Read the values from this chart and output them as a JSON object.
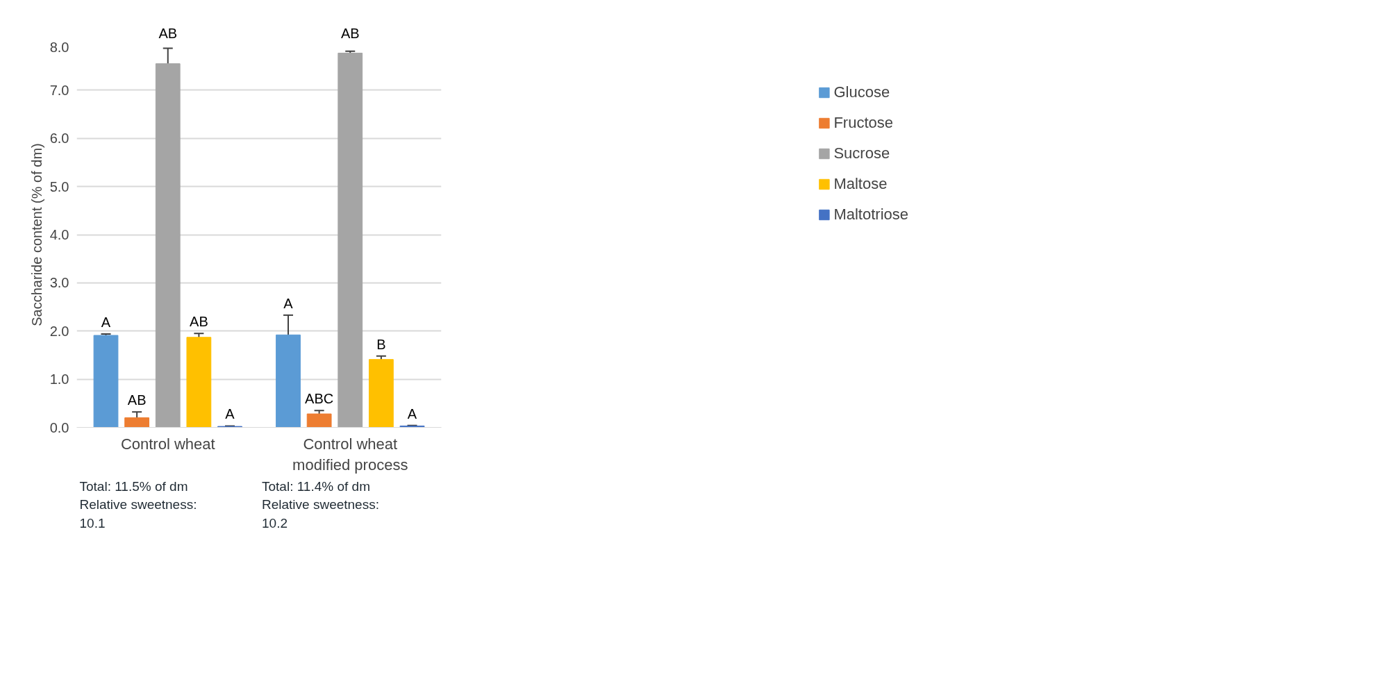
{
  "chart_data": {
    "type": "bar",
    "ylabel": "Saccharide content (% of dm)",
    "categories": [
      "Control wheat",
      "Control wheat modified process"
    ],
    "series": [
      {
        "name": "Glucose",
        "color": "#5b9bd5",
        "values": [
          1.91,
          1.92
        ],
        "errors": [
          0.03,
          0.41
        ],
        "value_labels": [
          "A",
          "A"
        ]
      },
      {
        "name": "Fructose",
        "color": "#ed7d31",
        "values": [
          0.2,
          0.28
        ],
        "errors": [
          0.12,
          0.07
        ],
        "value_labels": [
          "AB",
          "ABC"
        ]
      },
      {
        "name": "Sucrose",
        "color": "#a5a5a5",
        "values": [
          7.55,
          7.77
        ],
        "errors": [
          0.32,
          0.04
        ],
        "value_labels": [
          "AB",
          "AB"
        ]
      },
      {
        "name": "Maltose",
        "color": "#ffc000",
        "values": [
          1.87,
          1.41
        ],
        "errors": [
          0.08,
          0.07
        ],
        "value_labels": [
          "AB",
          "B"
        ]
      },
      {
        "name": "Maltotriose",
        "color": "#4472c4",
        "values": [
          0.02,
          0.03
        ],
        "errors": [
          0.01,
          0.01
        ],
        "value_labels": [
          "A",
          "A"
        ]
      }
    ],
    "ylim": [
      0,
      8
    ],
    "yticks": [
      {
        "value": 0,
        "label": "0.0"
      },
      {
        "value": 1,
        "label": "1.0"
      },
      {
        "value": 2,
        "label": "2.0"
      },
      {
        "value": 3,
        "label": "3.0"
      },
      {
        "value": 4,
        "label": "4.0"
      },
      {
        "value": 5,
        "label": "5.0"
      },
      {
        "value": 6,
        "label": "6.0"
      },
      {
        "value": 7,
        "label": "7.0"
      },
      {
        "value": 8,
        "label": "8.0"
      }
    ],
    "grid": "y",
    "legend": "right",
    "annotations": [
      "Total: 11.5% of dm Relative sweetness: 10.1",
      "Total: 11.4% of dm Relative sweetness: 10.2"
    ]
  }
}
